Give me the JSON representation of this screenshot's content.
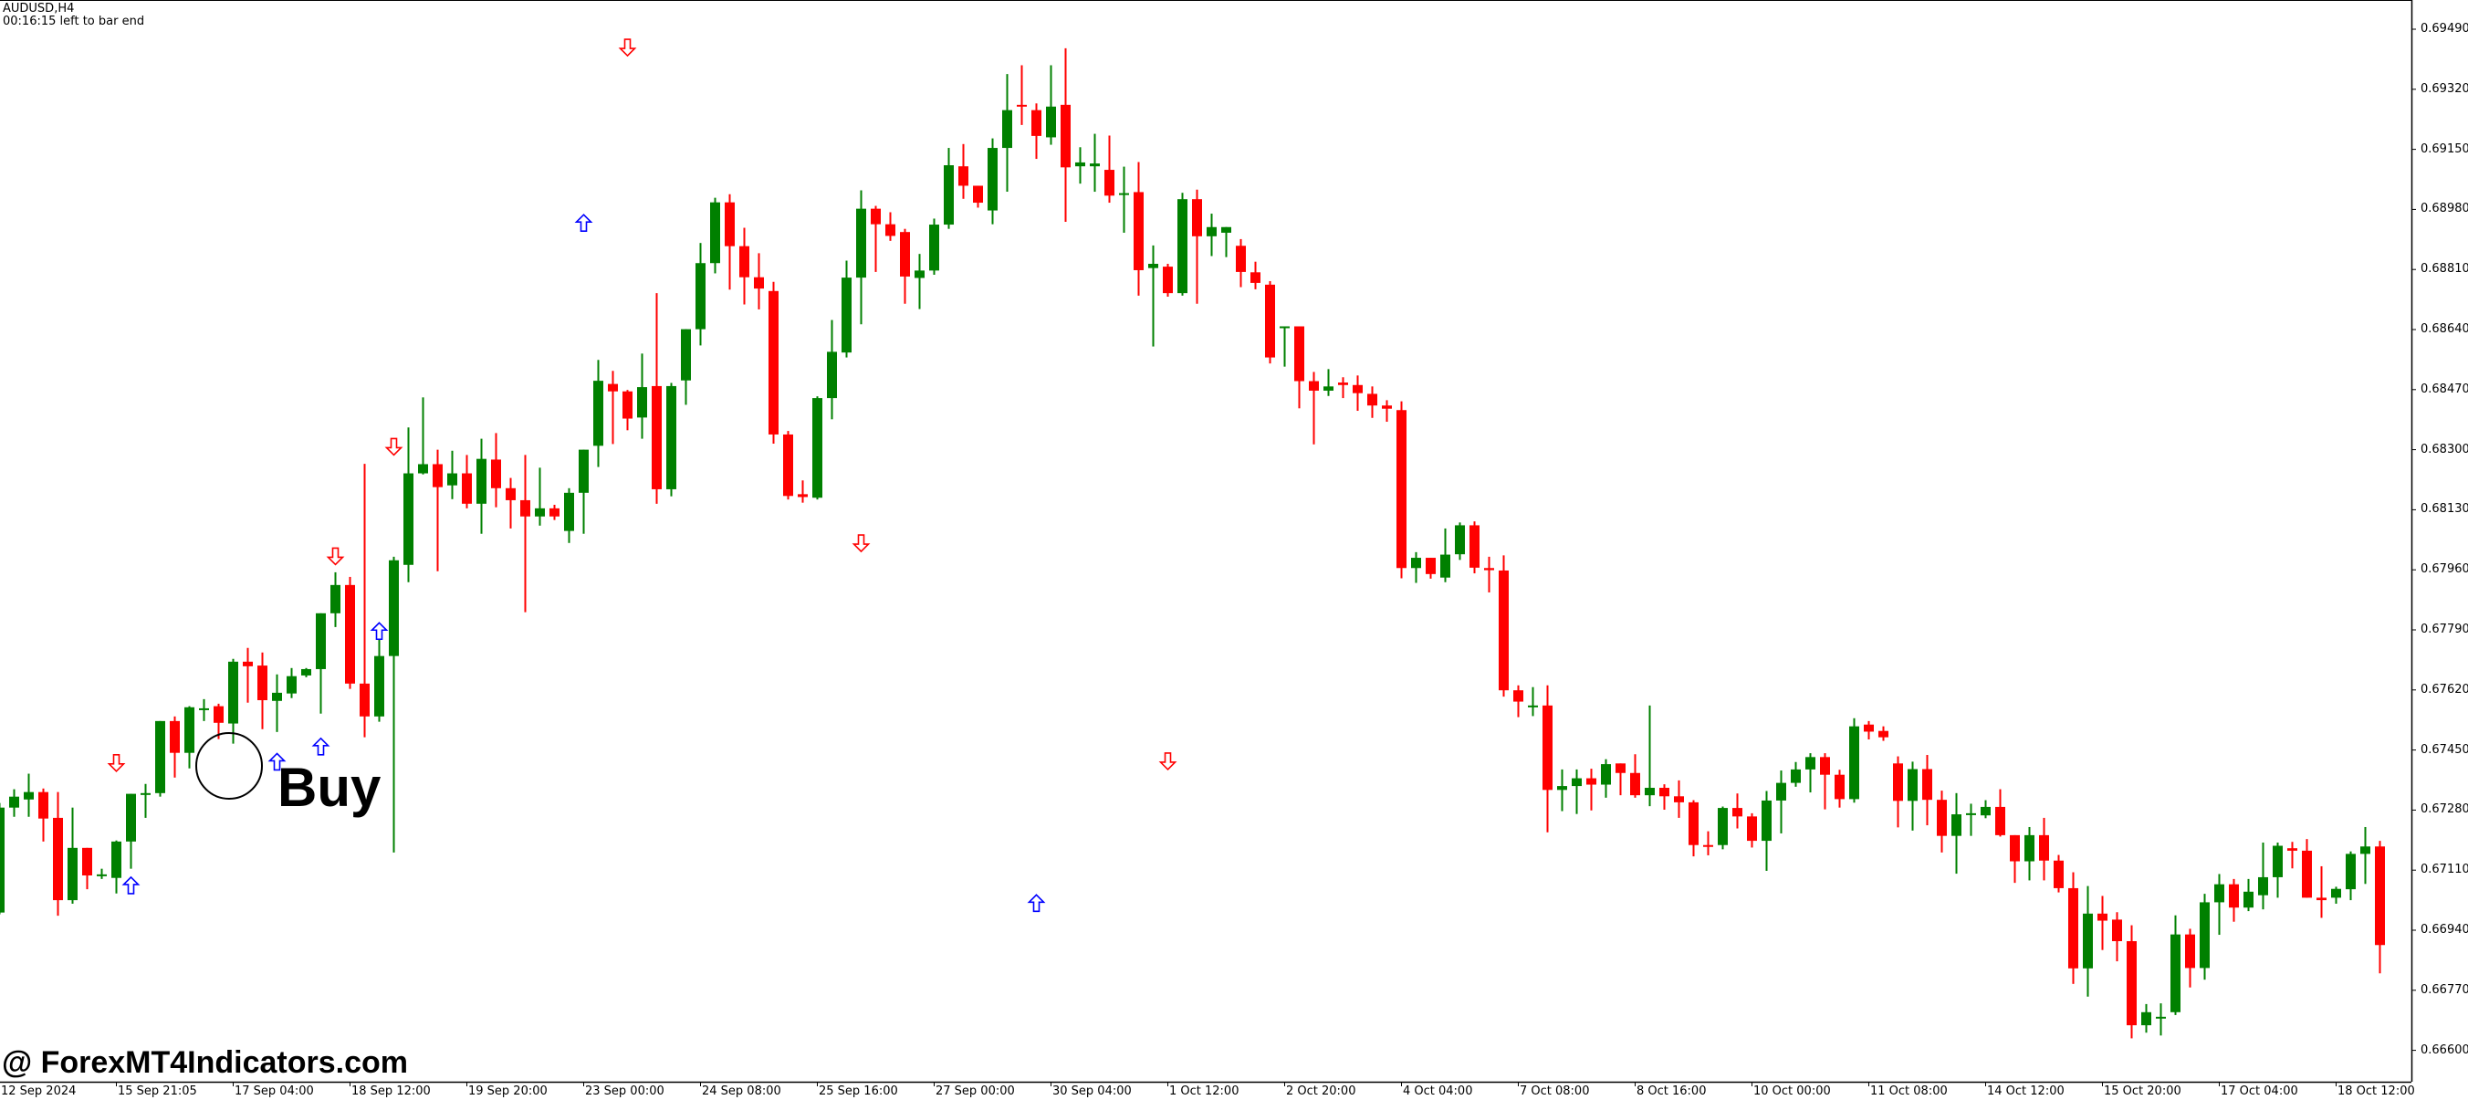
{
  "header": {
    "symbol_timeframe": "AUDUSD,H4",
    "bar_timer": "00:16:15 left to bar end"
  },
  "annotations": {
    "buy_label": "Buy",
    "watermark": "@ ForexMT4Indicators.com"
  },
  "colors": {
    "bull": "#008000",
    "bear": "#ff0000",
    "buy_arrow": "#0000ff",
    "sell_arrow": "#ff0000",
    "axis": "#000000",
    "background": "#ffffff"
  },
  "chart_data": {
    "type": "candlestick",
    "title": "AUDUSD,H4",
    "xlabel": "",
    "ylabel": "",
    "ylim": [
      0.6653,
      0.6955
    ],
    "grid": false,
    "y_ticks": [
      "0.69490",
      "0.69320",
      "0.69150",
      "0.68980",
      "0.68810",
      "0.68640",
      "0.68470",
      "0.68300",
      "0.68130",
      "0.67960",
      "0.67790",
      "0.67620",
      "0.67450",
      "0.67280",
      "0.67110",
      "0.66940",
      "0.66770",
      "0.66600"
    ],
    "x_ticks": [
      {
        "label": "12 Sep 2024",
        "index": 0
      },
      {
        "label": "15 Sep 21:05",
        "index": 8
      },
      {
        "label": "17 Sep 04:00",
        "index": 16
      },
      {
        "label": "18 Sep 12:00",
        "index": 24
      },
      {
        "label": "19 Sep 20:00",
        "index": 32
      },
      {
        "label": "23 Sep 00:00",
        "index": 40
      },
      {
        "label": "24 Sep 08:00",
        "index": 48
      },
      {
        "label": "25 Sep 16:00",
        "index": 56
      },
      {
        "label": "27 Sep 00:00",
        "index": 64
      },
      {
        "label": "30 Sep 04:00",
        "index": 72
      },
      {
        "label": "1 Oct 12:00",
        "index": 80
      },
      {
        "label": "2 Oct 20:00",
        "index": 88
      },
      {
        "label": "4 Oct 04:00",
        "index": 96
      },
      {
        "label": "7 Oct 08:00",
        "index": 104
      },
      {
        "label": "8 Oct 16:00",
        "index": 112
      },
      {
        "label": "10 Oct 00:00",
        "index": 120
      },
      {
        "label": "11 Oct 08:00",
        "index": 128
      },
      {
        "label": "14 Oct 12:00",
        "index": 136
      },
      {
        "label": "15 Oct 20:00",
        "index": 144
      },
      {
        "label": "17 Oct 04:00",
        "index": 152
      },
      {
        "label": "18 Oct 12:00",
        "index": 160
      }
    ],
    "candles": [
      [
        0.6699,
        0.67287,
        0.673,
        0.66985
      ],
      [
        0.67287,
        0.67318,
        0.67339,
        0.67261
      ],
      [
        0.6731,
        0.67331,
        0.67383,
        0.67261
      ],
      [
        0.67331,
        0.67256,
        0.67341,
        0.67191
      ],
      [
        0.67258,
        0.67025,
        0.67331,
        0.66981
      ],
      [
        0.67025,
        0.67173,
        0.67287,
        0.67015
      ],
      [
        0.67173,
        0.67095,
        0.67173,
        0.67056
      ],
      [
        0.67098,
        0.67098,
        0.67114,
        0.67085
      ],
      [
        0.67088,
        0.67191,
        0.67194,
        0.67044
      ],
      [
        0.67191,
        0.67326,
        0.67326,
        0.67114
      ],
      [
        0.67328,
        0.67328,
        0.67354,
        0.67258
      ],
      [
        0.67328,
        0.67532,
        0.67532,
        0.67318
      ],
      [
        0.67532,
        0.67442,
        0.67545,
        0.67372
      ],
      [
        0.67442,
        0.67571,
        0.67574,
        0.67398
      ],
      [
        0.67568,
        0.67568,
        0.67594,
        0.67532
      ],
      [
        0.67574,
        0.67527,
        0.67581,
        0.67481
      ],
      [
        0.67525,
        0.677,
        0.67708,
        0.67468
      ],
      [
        0.677,
        0.67687,
        0.67739,
        0.67584
      ],
      [
        0.67689,
        0.67591,
        0.67726,
        0.67509
      ],
      [
        0.67589,
        0.67612,
        0.67664,
        0.67501
      ],
      [
        0.6761,
        0.67659,
        0.67682,
        0.67597
      ],
      [
        0.67661,
        0.67679,
        0.67682,
        0.67656
      ],
      [
        0.67679,
        0.67837,
        0.6779,
        0.67553
      ],
      [
        0.67837,
        0.67917,
        0.67953,
        0.67798
      ],
      [
        0.67917,
        0.67638,
        0.6794,
        0.67623
      ],
      [
        0.67638,
        0.67545,
        0.6826,
        0.67486
      ],
      [
        0.67545,
        0.67716,
        0.6778,
        0.6753
      ],
      [
        0.67716,
        0.67987,
        0.67997,
        0.6716
      ],
      [
        0.67974,
        0.68233,
        0.68363,
        0.67925
      ],
      [
        0.68233,
        0.68259,
        0.68448,
        0.6823
      ],
      [
        0.68259,
        0.68194,
        0.683,
        0.67956
      ],
      [
        0.68199,
        0.68233,
        0.68297,
        0.6816
      ],
      [
        0.68233,
        0.68147,
        0.68285,
        0.68134
      ],
      [
        0.68147,
        0.68274,
        0.68331,
        0.68062
      ],
      [
        0.68272,
        0.68191,
        0.68347,
        0.68137
      ],
      [
        0.68191,
        0.68157,
        0.6822,
        0.68077
      ],
      [
        0.68157,
        0.68111,
        0.68285,
        0.6784
      ],
      [
        0.68111,
        0.68134,
        0.68249,
        0.68085
      ],
      [
        0.68134,
        0.68111,
        0.68144,
        0.68101
      ],
      [
        0.6807,
        0.68178,
        0.68191,
        0.68036
      ],
      [
        0.68178,
        0.683,
        0.683,
        0.68062
      ],
      [
        0.68311,
        0.68495,
        0.68554,
        0.68251
      ],
      [
        0.68486,
        0.68465,
        0.68523,
        0.68316
      ],
      [
        0.68465,
        0.68388,
        0.68469,
        0.68355
      ],
      [
        0.68391,
        0.68477,
        0.68572,
        0.68331
      ],
      [
        0.6848,
        0.68188,
        0.68743,
        0.68147
      ],
      [
        0.68188,
        0.6848,
        0.68489,
        0.68168
      ],
      [
        0.68496,
        0.68641,
        0.68641,
        0.68427
      ],
      [
        0.68641,
        0.68828,
        0.68885,
        0.68595
      ],
      [
        0.68828,
        0.69,
        0.69013,
        0.68799
      ],
      [
        0.69,
        0.68876,
        0.69023,
        0.68753
      ],
      [
        0.68876,
        0.68788,
        0.68928,
        0.68711
      ],
      [
        0.68788,
        0.68756,
        0.68856,
        0.68697
      ],
      [
        0.68749,
        0.68343,
        0.68775,
        0.68317
      ],
      [
        0.68343,
        0.68169,
        0.68353,
        0.68159
      ],
      [
        0.68174,
        0.68166,
        0.68213,
        0.6815
      ],
      [
        0.68164,
        0.68446,
        0.68451,
        0.68159
      ],
      [
        0.68446,
        0.68577,
        0.68667,
        0.68386
      ],
      [
        0.68575,
        0.68787,
        0.68835,
        0.68561
      ],
      [
        0.68787,
        0.68982,
        0.69034,
        0.68655
      ],
      [
        0.68982,
        0.68938,
        0.6899,
        0.68803
      ],
      [
        0.68938,
        0.68905,
        0.68972,
        0.68891
      ],
      [
        0.68916,
        0.6879,
        0.68925,
        0.68713
      ],
      [
        0.68786,
        0.68807,
        0.68854,
        0.68698
      ],
      [
        0.68807,
        0.68937,
        0.68954,
        0.68795
      ],
      [
        0.68937,
        0.69105,
        0.69154,
        0.68925
      ],
      [
        0.69102,
        0.69047,
        0.69165,
        0.6901
      ],
      [
        0.69047,
        0.68999,
        0.69047,
        0.68985
      ],
      [
        0.68977,
        0.69154,
        0.69181,
        0.68938
      ],
      [
        0.69154,
        0.69261,
        0.69363,
        0.6903
      ],
      [
        0.69276,
        0.69271,
        0.69388,
        0.69219
      ],
      [
        0.69261,
        0.69188,
        0.6928,
        0.69123
      ],
      [
        0.69184,
        0.69271,
        0.69388,
        0.69163
      ],
      [
        0.69276,
        0.69099,
        0.69436,
        0.68945
      ],
      [
        0.69102,
        0.69113,
        0.69156,
        0.69053
      ],
      [
        0.69102,
        0.6911,
        0.69194,
        0.6903
      ],
      [
        0.69092,
        0.69019,
        0.69189,
        0.68999
      ],
      [
        0.69026,
        0.69026,
        0.69101,
        0.68914
      ],
      [
        0.69029,
        0.68808,
        0.69114,
        0.68736
      ],
      [
        0.68814,
        0.68826,
        0.68878,
        0.68592
      ],
      [
        0.68818,
        0.68743,
        0.68826,
        0.68733
      ],
      [
        0.68743,
        0.69009,
        0.69027,
        0.68736
      ],
      [
        0.69009,
        0.68904,
        0.69036,
        0.68713
      ],
      [
        0.68904,
        0.6893,
        0.68968,
        0.68848
      ],
      [
        0.68914,
        0.6893,
        0.6891,
        0.68845
      ],
      [
        0.68877,
        0.68803,
        0.68896,
        0.6876
      ],
      [
        0.68802,
        0.68772,
        0.68832,
        0.68754
      ],
      [
        0.68767,
        0.68561,
        0.68777,
        0.68544
      ],
      [
        0.68644,
        0.68649,
        0.68649,
        0.68535
      ],
      [
        0.68649,
        0.68494,
        0.68649,
        0.68417
      ],
      [
        0.68494,
        0.68467,
        0.6852,
        0.68315
      ],
      [
        0.68467,
        0.68479,
        0.68528,
        0.68452
      ],
      [
        0.6849,
        0.68483,
        0.68505,
        0.68446
      ],
      [
        0.68483,
        0.6846,
        0.6851,
        0.6841
      ],
      [
        0.68458,
        0.68425,
        0.68479,
        0.6839
      ],
      [
        0.68425,
        0.68416,
        0.6844,
        0.68379
      ],
      [
        0.68412,
        0.67965,
        0.68437,
        0.67936
      ],
      [
        0.67965,
        0.67994,
        0.6801,
        0.67923
      ],
      [
        0.67994,
        0.67948,
        0.67994,
        0.67935
      ],
      [
        0.67938,
        0.68003,
        0.68077,
        0.67925
      ],
      [
        0.68004,
        0.68086,
        0.68094,
        0.67988
      ],
      [
        0.68086,
        0.67966,
        0.68097,
        0.6795
      ],
      [
        0.67965,
        0.67959,
        0.67997,
        0.67896
      ],
      [
        0.67958,
        0.67619,
        0.68001,
        0.67601
      ],
      [
        0.67619,
        0.67587,
        0.67633,
        0.67543
      ],
      [
        0.67573,
        0.67576,
        0.67628,
        0.67546
      ],
      [
        0.67576,
        0.67337,
        0.67633,
        0.67217
      ],
      [
        0.67337,
        0.67348,
        0.67395,
        0.67277
      ],
      [
        0.67348,
        0.6737,
        0.67395,
        0.67269
      ],
      [
        0.6737,
        0.67352,
        0.67397,
        0.67279
      ],
      [
        0.67352,
        0.6741,
        0.67424,
        0.67315
      ],
      [
        0.67412,
        0.67385,
        0.67412,
        0.67322
      ],
      [
        0.67385,
        0.67322,
        0.67438,
        0.67315
      ],
      [
        0.67322,
        0.67343,
        0.67576,
        0.67291
      ],
      [
        0.67343,
        0.67319,
        0.67353,
        0.67281
      ],
      [
        0.67319,
        0.67302,
        0.67364,
        0.67258
      ],
      [
        0.67302,
        0.67181,
        0.67308,
        0.67149
      ],
      [
        0.67181,
        0.6718,
        0.6722,
        0.67152
      ],
      [
        0.67181,
        0.67286,
        0.6729,
        0.67169
      ],
      [
        0.67286,
        0.67262,
        0.67327,
        0.67228
      ],
      [
        0.67262,
        0.67193,
        0.67271,
        0.67174
      ],
      [
        0.67193,
        0.67307,
        0.67334,
        0.67108
      ],
      [
        0.67307,
        0.67357,
        0.67392,
        0.67214
      ],
      [
        0.67357,
        0.67395,
        0.67416,
        0.67346
      ],
      [
        0.67395,
        0.6743,
        0.67441,
        0.6733
      ],
      [
        0.6743,
        0.6738,
        0.67441,
        0.67282
      ],
      [
        0.6738,
        0.67311,
        0.67394,
        0.67287
      ],
      [
        0.67311,
        0.67517,
        0.6754,
        0.67301
      ],
      [
        0.67522,
        0.67502,
        0.67532,
        0.6748
      ],
      [
        0.67504,
        0.67486,
        0.67517,
        0.67476
      ],
      [
        0.67412,
        0.67306,
        0.67432,
        0.67231
      ],
      [
        0.67306,
        0.67396,
        0.67417,
        0.67222
      ],
      [
        0.67396,
        0.67309,
        0.67436,
        0.67237
      ],
      [
        0.67309,
        0.67207,
        0.67335,
        0.6716
      ],
      [
        0.67207,
        0.67268,
        0.67328,
        0.671
      ],
      [
        0.67271,
        0.67271,
        0.67298,
        0.67207
      ],
      [
        0.67265,
        0.67289,
        0.67308,
        0.67257
      ],
      [
        0.67289,
        0.67209,
        0.67339,
        0.67205
      ],
      [
        0.67209,
        0.67135,
        0.67209,
        0.67074
      ],
      [
        0.67135,
        0.67209,
        0.67232,
        0.67081
      ],
      [
        0.67209,
        0.67137,
        0.67258,
        0.67081
      ],
      [
        0.67137,
        0.67059,
        0.67153,
        0.67047
      ],
      [
        0.67059,
        0.66832,
        0.67104,
        0.66788
      ],
      [
        0.66832,
        0.66987,
        0.67065,
        0.66752
      ],
      [
        0.66987,
        0.66967,
        0.67037,
        0.66884
      ],
      [
        0.6697,
        0.66909,
        0.66991,
        0.66852
      ],
      [
        0.66909,
        0.66671,
        0.66954,
        0.66634
      ],
      [
        0.66671,
        0.66708,
        0.66731,
        0.6665
      ],
      [
        0.66695,
        0.66695,
        0.66733,
        0.66642
      ],
      [
        0.66708,
        0.66928,
        0.66982,
        0.667
      ],
      [
        0.66928,
        0.66833,
        0.66944,
        0.66778
      ],
      [
        0.66833,
        0.67019,
        0.67043,
        0.668
      ],
      [
        0.67019,
        0.6707,
        0.67099,
        0.66927
      ],
      [
        0.6707,
        0.67004,
        0.67085,
        0.66964
      ],
      [
        0.67004,
        0.67049,
        0.67085,
        0.66994
      ],
      [
        0.67039,
        0.6709,
        0.67188,
        0.66999
      ],
      [
        0.6709,
        0.67179,
        0.67188,
        0.67032
      ],
      [
        0.67172,
        0.67165,
        0.6719,
        0.67115
      ],
      [
        0.67165,
        0.67032,
        0.67198,
        0.67044
      ],
      [
        0.67032,
        0.67025,
        0.67121,
        0.66975
      ],
      [
        0.67032,
        0.67057,
        0.67063,
        0.67015
      ],
      [
        0.67056,
        0.67156,
        0.67163,
        0.67025
      ],
      [
        0.67156,
        0.67177,
        0.67232,
        0.67071
      ],
      [
        0.67177,
        0.66898,
        0.67193,
        0.66818
      ]
    ],
    "signals": [
      {
        "type": "sell",
        "index": 8,
        "price": 0.6739
      },
      {
        "type": "buy",
        "index": 9,
        "price": 0.6709
      },
      {
        "type": "buy",
        "index": 19,
        "price": 0.6744
      },
      {
        "type": "buy",
        "index": 22,
        "price": 0.67483
      },
      {
        "type": "sell",
        "index": 23,
        "price": 0.67975
      },
      {
        "type": "buy",
        "index": 26,
        "price": 0.6781
      },
      {
        "type": "sell",
        "index": 27,
        "price": 0.68285
      },
      {
        "type": "buy",
        "index": 40,
        "price": 0.68965
      },
      {
        "type": "sell",
        "index": 43,
        "price": 0.69415
      },
      {
        "type": "sell",
        "index": 59,
        "price": 0.68012
      },
      {
        "type": "buy",
        "index": 71,
        "price": 0.6704
      },
      {
        "type": "sell",
        "index": 80,
        "price": 0.67395
      }
    ]
  }
}
